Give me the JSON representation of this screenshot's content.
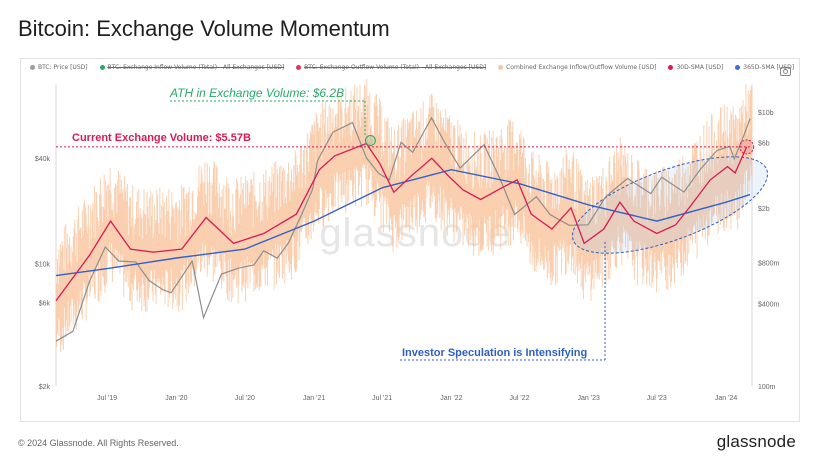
{
  "page": {
    "title": "Bitcoin: Exchange Volume Momentum",
    "footer": "© 2024 Glassnode. All Rights Reserved.",
    "brand": "glassnode",
    "watermark": "glassnode"
  },
  "legend": [
    {
      "label": "BTC: Price [USD]",
      "color": "#9e9e9e",
      "struck": false
    },
    {
      "label": "BTC: Exchange Inflow Volume (Total) - All Exchanges [USD]",
      "color": "#2ea56a",
      "struck": true
    },
    {
      "label": "BTC: Exchange Outflow Volume (Total) - All Exchanges [USD]",
      "color": "#e2365a",
      "struck": true
    },
    {
      "label": "Combined Exchange Inflow/Outflow Volume [USD]",
      "color": "#f6c8a8",
      "struck": false
    },
    {
      "label": "30D-SMA [USD]",
      "color": "#d81b55",
      "struck": false
    },
    {
      "label": "365D-SMA [USD]",
      "color": "#3f6fd1",
      "struck": false
    }
  ],
  "annotations": {
    "ath": "ATH in Exchange Volume: $6.2B",
    "current": "Current Exchange Volume: $5.57B",
    "speculation": "Investor Speculation is Intensifying"
  },
  "colors": {
    "price": "#8e8e8e",
    "combined": "#f9c9a6",
    "sma30": "#d81b55",
    "sma365": "#3461c9",
    "ath_text": "#2aa86a",
    "current_text": "#d81b55",
    "speculation_text": "#2f5fc4"
  },
  "chart_data": {
    "type": "line",
    "x_ticks": [
      "Jul '19",
      "Jan '20",
      "Jul '20",
      "Jan '21",
      "Jul '21",
      "Jan '22",
      "Jul '22",
      "Jan '23",
      "Jul '23",
      "Jan '24"
    ],
    "x_tick_dates": [
      "2019-07-01",
      "2020-01-01",
      "2020-07-01",
      "2021-01-01",
      "2021-07-01",
      "2022-01-01",
      "2022-07-01",
      "2023-01-01",
      "2023-07-01",
      "2024-01-01"
    ],
    "x_range": [
      "2019-02-15",
      "2024-03-10"
    ],
    "left_axis": {
      "scale": "log",
      "unit": "USD",
      "ticks": [
        "$2k",
        "$6k",
        "$10k",
        "$40k"
      ],
      "tick_values": [
        2000,
        6000,
        10000,
        40000
      ],
      "range": [
        2000,
        100000
      ]
    },
    "right_axis": {
      "scale": "log",
      "unit": "USD",
      "ticks": [
        "100m",
        "$400m",
        "$800m",
        "$2b",
        "$6b",
        "$10b"
      ],
      "tick_values": [
        100000000,
        400000000,
        800000000,
        2000000000,
        6000000000,
        10000000000
      ],
      "range": [
        100000000,
        15000000000
      ]
    },
    "series": [
      {
        "name": "BTC: Price [USD]",
        "axis": "left",
        "points": [
          [
            "2019-02-15",
            3600
          ],
          [
            "2019-04-01",
            4100
          ],
          [
            "2019-05-15",
            7900
          ],
          [
            "2019-06-26",
            12400
          ],
          [
            "2019-08-01",
            10300
          ],
          [
            "2019-09-15",
            10200
          ],
          [
            "2019-10-20",
            8000
          ],
          [
            "2019-11-25",
            7100
          ],
          [
            "2019-12-18",
            6800
          ],
          [
            "2020-02-12",
            10300
          ],
          [
            "2020-03-13",
            4900
          ],
          [
            "2020-04-30",
            8700
          ],
          [
            "2020-06-15",
            9400
          ],
          [
            "2020-07-25",
            9800
          ],
          [
            "2020-08-20",
            11800
          ],
          [
            "2020-09-25",
            10700
          ],
          [
            "2020-10-25",
            13100
          ],
          [
            "2020-11-30",
            19200
          ],
          [
            "2020-12-28",
            26500
          ],
          [
            "2021-01-10",
            38500
          ],
          [
            "2021-02-20",
            56000
          ],
          [
            "2021-04-13",
            63500
          ],
          [
            "2021-05-20",
            40000
          ],
          [
            "2021-06-22",
            32500
          ],
          [
            "2021-07-20",
            30000
          ],
          [
            "2021-08-20",
            49000
          ],
          [
            "2021-09-20",
            43000
          ],
          [
            "2021-11-09",
            67500
          ],
          [
            "2021-12-15",
            48500
          ],
          [
            "2022-01-24",
            35000
          ],
          [
            "2022-03-29",
            47500
          ],
          [
            "2022-05-10",
            30500
          ],
          [
            "2022-06-18",
            19000
          ],
          [
            "2022-08-15",
            24000
          ],
          [
            "2022-09-20",
            19000
          ],
          [
            "2022-11-10",
            16500
          ],
          [
            "2022-12-30",
            16600
          ],
          [
            "2023-02-15",
            24000
          ],
          [
            "2023-04-14",
            30500
          ],
          [
            "2023-06-15",
            25000
          ],
          [
            "2023-07-14",
            31000
          ],
          [
            "2023-09-11",
            25500
          ],
          [
            "2023-10-25",
            34500
          ],
          [
            "2023-12-08",
            44000
          ],
          [
            "2024-01-11",
            46500
          ],
          [
            "2024-01-23",
            39500
          ],
          [
            "2024-02-15",
            52000
          ],
          [
            "2024-03-05",
            67000
          ]
        ]
      },
      {
        "name": "30D-SMA [USD]",
        "axis": "right",
        "points": [
          [
            "2019-02-15",
            420000000
          ],
          [
            "2019-05-15",
            900000000
          ],
          [
            "2019-07-10",
            1600000000
          ],
          [
            "2019-09-01",
            1000000000
          ],
          [
            "2019-11-01",
            950000000
          ],
          [
            "2020-01-15",
            1000000000
          ],
          [
            "2020-03-20",
            1700000000
          ],
          [
            "2020-06-01",
            1100000000
          ],
          [
            "2020-08-20",
            1300000000
          ],
          [
            "2020-11-15",
            1800000000
          ],
          [
            "2021-01-15",
            3800000000
          ],
          [
            "2021-02-25",
            4800000000
          ],
          [
            "2021-05-20",
            5900000000
          ],
          [
            "2021-06-25",
            4200000000
          ],
          [
            "2021-08-01",
            2600000000
          ],
          [
            "2021-09-15",
            3400000000
          ],
          [
            "2021-11-10",
            4600000000
          ],
          [
            "2021-12-25",
            3400000000
          ],
          [
            "2022-02-01",
            2700000000
          ],
          [
            "2022-03-20",
            2300000000
          ],
          [
            "2022-05-15",
            2800000000
          ],
          [
            "2022-06-25",
            3200000000
          ],
          [
            "2022-08-01",
            1800000000
          ],
          [
            "2022-09-25",
            1400000000
          ],
          [
            "2022-11-15",
            2000000000
          ],
          [
            "2022-12-20",
            1100000000
          ],
          [
            "2023-02-10",
            1400000000
          ],
          [
            "2023-03-25",
            2200000000
          ],
          [
            "2023-05-01",
            1600000000
          ],
          [
            "2023-07-01",
            1300000000
          ],
          [
            "2023-08-20",
            1500000000
          ],
          [
            "2023-10-01",
            2100000000
          ],
          [
            "2023-11-20",
            3200000000
          ],
          [
            "2024-01-05",
            4000000000
          ],
          [
            "2024-01-25",
            3600000000
          ],
          [
            "2024-02-25",
            5570000000
          ]
        ]
      },
      {
        "name": "365D-SMA [USD]",
        "axis": "right",
        "points": [
          [
            "2019-02-15",
            640000000
          ],
          [
            "2019-07-01",
            720000000
          ],
          [
            "2020-01-01",
            860000000
          ],
          [
            "2020-07-01",
            1000000000
          ],
          [
            "2021-01-01",
            1600000000
          ],
          [
            "2021-07-01",
            2800000000
          ],
          [
            "2022-01-01",
            3800000000
          ],
          [
            "2022-07-01",
            3000000000
          ],
          [
            "2023-01-01",
            2100000000
          ],
          [
            "2023-07-01",
            1600000000
          ],
          [
            "2024-01-01",
            2200000000
          ],
          [
            "2024-03-05",
            2500000000
          ]
        ]
      }
    ],
    "ath_exchange_volume_usd": 6200000000,
    "current_exchange_volume_usd": 5570000000
  }
}
